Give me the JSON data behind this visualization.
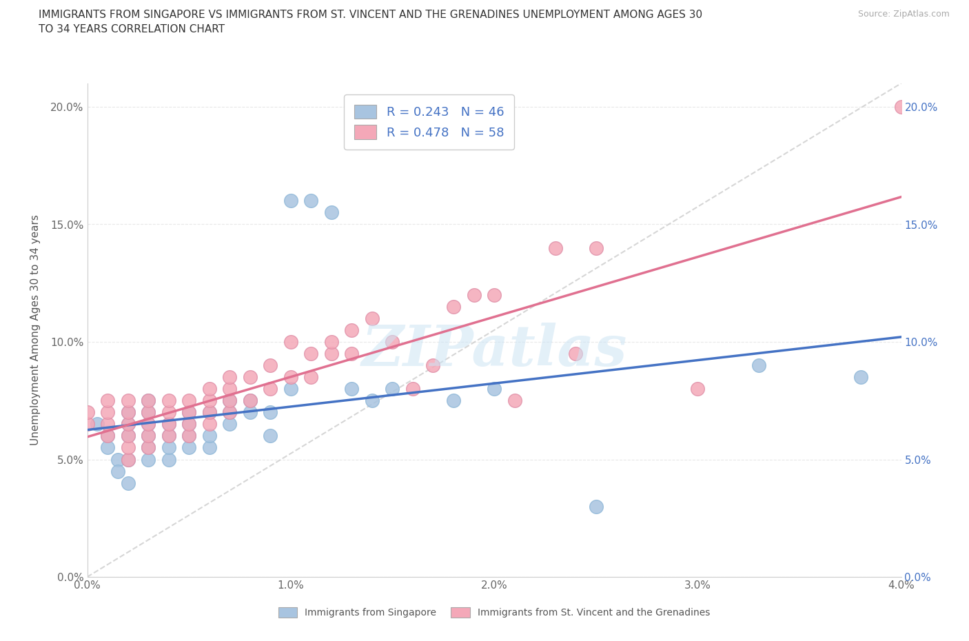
{
  "title": "IMMIGRANTS FROM SINGAPORE VS IMMIGRANTS FROM ST. VINCENT AND THE GRENADINES UNEMPLOYMENT AMONG AGES 30\nTO 34 YEARS CORRELATION CHART",
  "source": "Source: ZipAtlas.com",
  "ylabel": "Unemployment Among Ages 30 to 34 years",
  "xlim": [
    0.0,
    0.04
  ],
  "ylim": [
    0.0,
    0.21
  ],
  "x_ticks": [
    0.0,
    0.01,
    0.02,
    0.03,
    0.04
  ],
  "x_tick_labels": [
    "0.0%",
    "1.0%",
    "2.0%",
    "3.0%",
    "4.0%"
  ],
  "y_ticks": [
    0.0,
    0.05,
    0.1,
    0.15,
    0.2
  ],
  "y_tick_labels": [
    "0.0%",
    "5.0%",
    "10.0%",
    "15.0%",
    "20.0%"
  ],
  "singapore_color": "#a8c4e0",
  "stvincent_color": "#f4a8b8",
  "singapore_line_color": "#4472c4",
  "stvincent_line_color": "#e07090",
  "trend_line_color": "#cccccc",
  "legend_R_singapore": "R = 0.243",
  "legend_N_singapore": "N = 46",
  "legend_R_stvincent": "R = 0.478",
  "legend_N_stvincent": "N = 58",
  "watermark": "ZIPatlas",
  "singapore_x": [
    0.0005,
    0.001,
    0.001,
    0.0015,
    0.0015,
    0.002,
    0.002,
    0.002,
    0.002,
    0.002,
    0.003,
    0.003,
    0.003,
    0.003,
    0.003,
    0.003,
    0.004,
    0.004,
    0.004,
    0.004,
    0.005,
    0.005,
    0.005,
    0.005,
    0.006,
    0.006,
    0.006,
    0.007,
    0.007,
    0.007,
    0.008,
    0.008,
    0.009,
    0.009,
    0.01,
    0.01,
    0.011,
    0.012,
    0.013,
    0.014,
    0.015,
    0.018,
    0.02,
    0.025,
    0.033,
    0.038
  ],
  "singapore_y": [
    0.065,
    0.06,
    0.055,
    0.05,
    0.045,
    0.04,
    0.05,
    0.06,
    0.065,
    0.07,
    0.05,
    0.055,
    0.06,
    0.065,
    0.07,
    0.075,
    0.05,
    0.055,
    0.06,
    0.065,
    0.055,
    0.06,
    0.065,
    0.07,
    0.055,
    0.06,
    0.07,
    0.065,
    0.07,
    0.075,
    0.07,
    0.075,
    0.06,
    0.07,
    0.08,
    0.16,
    0.16,
    0.155,
    0.08,
    0.075,
    0.08,
    0.075,
    0.08,
    0.03,
    0.09,
    0.085
  ],
  "stvincent_x": [
    0.0,
    0.0,
    0.001,
    0.001,
    0.001,
    0.001,
    0.002,
    0.002,
    0.002,
    0.002,
    0.002,
    0.002,
    0.003,
    0.003,
    0.003,
    0.003,
    0.003,
    0.004,
    0.004,
    0.004,
    0.004,
    0.005,
    0.005,
    0.005,
    0.005,
    0.006,
    0.006,
    0.006,
    0.006,
    0.007,
    0.007,
    0.007,
    0.007,
    0.008,
    0.008,
    0.009,
    0.009,
    0.01,
    0.01,
    0.011,
    0.011,
    0.012,
    0.012,
    0.013,
    0.013,
    0.014,
    0.015,
    0.016,
    0.017,
    0.018,
    0.019,
    0.02,
    0.021,
    0.023,
    0.024,
    0.025,
    0.03,
    0.04
  ],
  "stvincent_y": [
    0.065,
    0.07,
    0.06,
    0.065,
    0.07,
    0.075,
    0.05,
    0.055,
    0.06,
    0.065,
    0.07,
    0.075,
    0.055,
    0.06,
    0.065,
    0.07,
    0.075,
    0.06,
    0.065,
    0.07,
    0.075,
    0.06,
    0.065,
    0.07,
    0.075,
    0.065,
    0.07,
    0.075,
    0.08,
    0.07,
    0.075,
    0.08,
    0.085,
    0.075,
    0.085,
    0.08,
    0.09,
    0.085,
    0.1,
    0.085,
    0.095,
    0.095,
    0.1,
    0.095,
    0.105,
    0.11,
    0.1,
    0.08,
    0.09,
    0.115,
    0.12,
    0.12,
    0.075,
    0.14,
    0.095,
    0.14,
    0.08,
    0.2
  ],
  "background_color": "#ffffff",
  "grid_color": "#e8e8e8"
}
